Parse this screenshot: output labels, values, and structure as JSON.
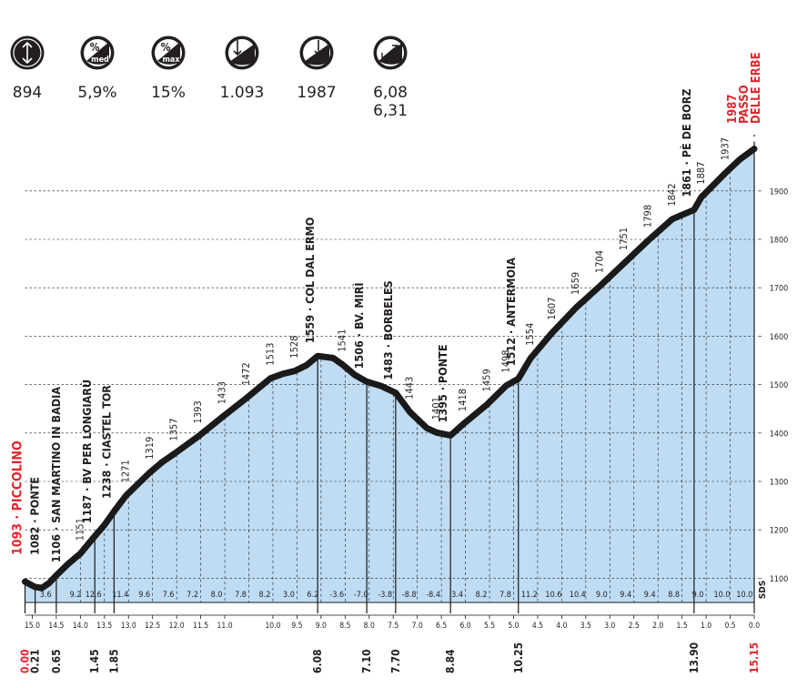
{
  "stats": [
    {
      "icon": "height-gain-icon",
      "symbol": "↕",
      "sub": "",
      "values": [
        "894"
      ]
    },
    {
      "icon": "average-gradient-icon",
      "symbol": "%",
      "sub": "med",
      "values": [
        "5,9%"
      ]
    },
    {
      "icon": "max-gradient-icon",
      "symbol": "%",
      "sub": "max",
      "values": [
        "15%"
      ]
    },
    {
      "icon": "start-altitude-icon",
      "symbol": "↓",
      "sub": "",
      "values": [
        "1.093"
      ]
    },
    {
      "icon": "finish-altitude-icon",
      "symbol": "↓",
      "sub": "",
      "values": [
        "1987"
      ]
    },
    {
      "icon": "distance-icon",
      "symbol": "↗",
      "sub": "",
      "values": [
        "6,08",
        "6,31"
      ]
    }
  ],
  "chart_data": {
    "type": "area",
    "xlim": [
      0,
      15.15
    ],
    "ylim": [
      1050,
      2000
    ],
    "ytick_labels": [
      "1100",
      "1200",
      "1300",
      "1400",
      "1500",
      "1600",
      "1700",
      "1800",
      "1900"
    ],
    "remaining_km_labels": [
      "15.0",
      "14.5",
      "14.0",
      "13.5",
      "13.0",
      "12.5",
      "12.0",
      "11.5",
      "11.0",
      "10.0",
      "9.5",
      "9.0",
      "8.5",
      "8.0",
      "7.5",
      "7.0",
      "6.5",
      "6.0",
      "5.5",
      "5.0",
      "4.5",
      "4.0",
      "3.5",
      "3.0",
      "2.5",
      "2.0",
      "1.5",
      "1.0",
      "0.5",
      "0.0"
    ],
    "remaining_km_values": [
      15.0,
      14.5,
      14.0,
      13.5,
      13.0,
      12.5,
      12.0,
      11.5,
      11.0,
      10.0,
      9.5,
      9.0,
      8.5,
      8.0,
      7.5,
      7.0,
      6.5,
      6.0,
      5.5,
      5.0,
      4.5,
      4.0,
      3.5,
      3.0,
      2.5,
      2.0,
      1.5,
      1.0,
      0.5,
      0.0
    ],
    "profile": [
      [
        0.0,
        1093
      ],
      [
        0.15,
        1085
      ],
      [
        0.21,
        1082
      ],
      [
        0.35,
        1080
      ],
      [
        0.5,
        1090
      ],
      [
        0.65,
        1106
      ],
      [
        0.9,
        1130
      ],
      [
        1.15,
        1151
      ],
      [
        1.45,
        1187
      ],
      [
        1.65,
        1210
      ],
      [
        1.85,
        1238
      ],
      [
        2.1,
        1271
      ],
      [
        2.6,
        1319
      ],
      [
        2.85,
        1340
      ],
      [
        3.1,
        1357
      ],
      [
        3.6,
        1393
      ],
      [
        4.1,
        1433
      ],
      [
        4.6,
        1472
      ],
      [
        5.1,
        1513
      ],
      [
        5.35,
        1522
      ],
      [
        5.6,
        1528
      ],
      [
        5.85,
        1540
      ],
      [
        6.08,
        1559
      ],
      [
        6.4,
        1555
      ],
      [
        6.6,
        1541
      ],
      [
        6.85,
        1520
      ],
      [
        7.1,
        1506
      ],
      [
        7.4,
        1497
      ],
      [
        7.7,
        1483
      ],
      [
        8.0,
        1443
      ],
      [
        8.35,
        1410
      ],
      [
        8.55,
        1401
      ],
      [
        8.84,
        1395
      ],
      [
        9.1,
        1418
      ],
      [
        9.6,
        1459
      ],
      [
        10.0,
        1498
      ],
      [
        10.25,
        1512
      ],
      [
        10.5,
        1554
      ],
      [
        10.95,
        1607
      ],
      [
        11.45,
        1659
      ],
      [
        11.95,
        1704
      ],
      [
        12.45,
        1751
      ],
      [
        12.95,
        1798
      ],
      [
        13.45,
        1842
      ],
      [
        13.9,
        1861
      ],
      [
        14.05,
        1887
      ],
      [
        14.55,
        1937
      ],
      [
        14.85,
        1965
      ],
      [
        15.15,
        1987
      ]
    ],
    "markers": [
      {
        "km": 0.0,
        "km_label": "0.00",
        "name": "1093 · PICCOLINO",
        "red": true
      },
      {
        "km": 0.21,
        "km_label": "0.21",
        "name": "1082 · PONTE",
        "red": false
      },
      {
        "km": 0.65,
        "km_label": "0.65",
        "name": "1106 · SAN MARTINO IN BADIA",
        "red": false
      },
      {
        "km": 1.45,
        "km_label": "1.45",
        "name": "1187 · BV PER LONGIARÙ",
        "red": false
      },
      {
        "km": 1.85,
        "km_label": "1.85",
        "name": "1238 · CIASTEL TOR",
        "red": false
      },
      {
        "km": 6.08,
        "km_label": "6.08",
        "name": "1559 · COL DAL ERMO",
        "red": false
      },
      {
        "km": 7.1,
        "km_label": "7.10",
        "name": "1506 · BV. MIRÌ",
        "red": false
      },
      {
        "km": 7.7,
        "km_label": "7.70",
        "name": "1483 · BORBELES",
        "red": false
      },
      {
        "km": 8.84,
        "km_label": "8.84",
        "name": "1395 · PONTE",
        "red": false
      },
      {
        "km": 10.25,
        "km_label": "10.25",
        "name": "1512 · ANTERMOIA",
        "red": false
      },
      {
        "km": 13.9,
        "km_label": "13.90",
        "name": "1861 · PÈ DE BORZ",
        "red": false
      },
      {
        "km": 15.15,
        "km_label": "15.15",
        "name_lines": [
          "1987",
          "PASSO",
          "DELLE ERBE"
        ],
        "red": true
      }
    ],
    "altitude_labels": [
      {
        "km": 1.15,
        "alt": 1151
      },
      {
        "km": 2.1,
        "alt": 1271
      },
      {
        "km": 2.6,
        "alt": 1319
      },
      {
        "km": 3.1,
        "alt": 1357
      },
      {
        "km": 3.6,
        "alt": 1393
      },
      {
        "km": 4.1,
        "alt": 1433
      },
      {
        "km": 4.6,
        "alt": 1472
      },
      {
        "km": 5.1,
        "alt": 1513
      },
      {
        "km": 5.6,
        "alt": 1528
      },
      {
        "km": 6.6,
        "alt": 1541
      },
      {
        "km": 8.0,
        "alt": 1443
      },
      {
        "km": 8.55,
        "alt": 1401
      },
      {
        "km": 9.1,
        "alt": 1418
      },
      {
        "km": 9.6,
        "alt": 1459
      },
      {
        "km": 10.0,
        "alt": 1498
      },
      {
        "km": 10.5,
        "alt": 1554
      },
      {
        "km": 10.95,
        "alt": 1607
      },
      {
        "km": 11.45,
        "alt": 1659
      },
      {
        "km": 11.95,
        "alt": 1704
      },
      {
        "km": 12.45,
        "alt": 1751
      },
      {
        "km": 12.95,
        "alt": 1798
      },
      {
        "km": 13.45,
        "alt": 1842
      },
      {
        "km": 14.05,
        "alt": 1887
      },
      {
        "km": 14.55,
        "alt": 1937
      }
    ],
    "gradients": [
      {
        "km": 0.43,
        "label": "3.6"
      },
      {
        "km": 1.05,
        "label": "9.2"
      },
      {
        "km": 1.42,
        "label": "12.6"
      },
      {
        "km": 1.98,
        "label": "11.4"
      },
      {
        "km": 2.48,
        "label": "9.6"
      },
      {
        "km": 2.98,
        "label": "7.6"
      },
      {
        "km": 3.48,
        "label": "7.2"
      },
      {
        "km": 3.98,
        "label": "8.0"
      },
      {
        "km": 4.48,
        "label": "7.8"
      },
      {
        "km": 4.98,
        "label": "8.2"
      },
      {
        "km": 5.48,
        "label": "3.0"
      },
      {
        "km": 5.98,
        "label": "6.2"
      },
      {
        "km": 6.48,
        "label": "-3.6"
      },
      {
        "km": 6.98,
        "label": "-7.0"
      },
      {
        "km": 7.48,
        "label": "-3.8"
      },
      {
        "km": 7.98,
        "label": "-8.8"
      },
      {
        "km": 8.48,
        "label": "-8.4"
      },
      {
        "km": 8.98,
        "label": "3.4"
      },
      {
        "km": 9.48,
        "label": "8.2"
      },
      {
        "km": 9.98,
        "label": "7.8"
      },
      {
        "km": 10.48,
        "label": "11.2"
      },
      {
        "km": 10.98,
        "label": "10.6"
      },
      {
        "km": 11.48,
        "label": "10.4"
      },
      {
        "km": 11.98,
        "label": "9.0"
      },
      {
        "km": 12.48,
        "label": "9.4"
      },
      {
        "km": 12.98,
        "label": "9.4"
      },
      {
        "km": 13.48,
        "label": "8.8"
      },
      {
        "km": 13.98,
        "label": "9.0"
      },
      {
        "km": 14.48,
        "label": "10.0"
      },
      {
        "km": 14.95,
        "label": "10.0"
      }
    ],
    "logo": "SDS",
    "colors": {
      "fill": "#bfdcf3",
      "line": "#1a1a1a",
      "red": "#e1262d"
    }
  }
}
